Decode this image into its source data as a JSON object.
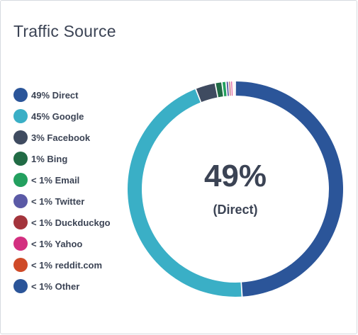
{
  "card": {
    "title": "Traffic Source"
  },
  "chart_data": {
    "type": "pie",
    "title": "Traffic Source",
    "center": {
      "value": "49%",
      "label": "(Direct)"
    },
    "slices": [
      {
        "label": "49% Direct",
        "value": 49.0,
        "color": "#2b5599"
      },
      {
        "label": "45% Google",
        "value": 45.0,
        "color": "#3aafc6"
      },
      {
        "label": "3% Facebook",
        "value": 3.0,
        "color": "#3f4b60"
      },
      {
        "label": "1% Bing",
        "value": 1.0,
        "color": "#216b45"
      },
      {
        "label": "< 1% Email",
        "value": 0.6,
        "color": "#23a05f"
      },
      {
        "label": "< 1% Twitter",
        "value": 0.4,
        "color": "#5b5aa6"
      },
      {
        "label": "< 1% Duckduckgo",
        "value": 0.3,
        "color": "#a3343c"
      },
      {
        "label": "< 1% Yahoo",
        "value": 0.3,
        "color": "#d32f80"
      },
      {
        "label": "< 1% reddit.com",
        "value": 0.2,
        "color": "#cf4a28"
      },
      {
        "label": "< 1% Other",
        "value": 0.2,
        "color": "#2b5599"
      }
    ],
    "legend_position": "left"
  }
}
